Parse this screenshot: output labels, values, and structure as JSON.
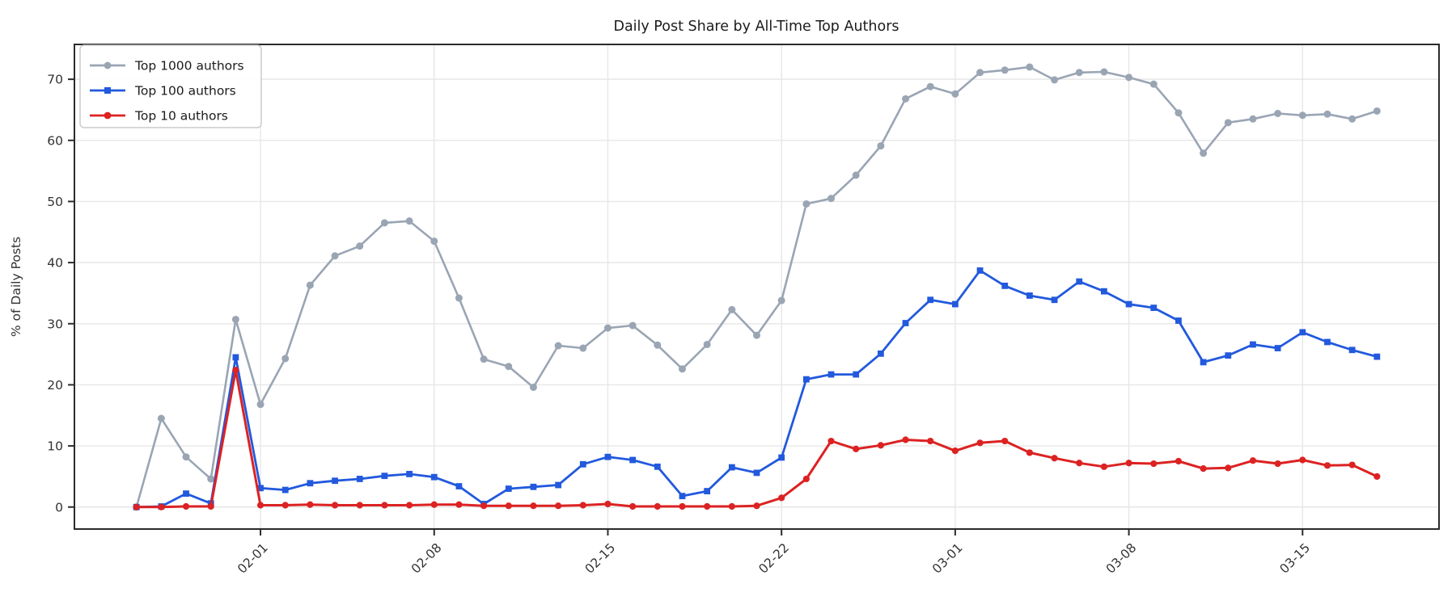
{
  "title": "Daily Post Share by All-Time Top Authors",
  "ylabel": "% of Daily Posts",
  "colors": {
    "top1000": "#9aa5b4",
    "top100": "#2259dd",
    "top10": "#dc2222",
    "grid": "#e7e7e7",
    "spine": "#2b2b2b",
    "tick_text": "#333333",
    "title_text": "#1c1c1c",
    "legend_border": "#cccccc",
    "background": "#ffffff"
  },
  "legend": {
    "position": "upper-left",
    "entries": [
      "Top 1000 authors",
      "Top 100 authors",
      "Top 10 authors"
    ]
  },
  "chart_data": {
    "type": "line",
    "x": [
      "01-27",
      "01-28",
      "01-29",
      "01-30",
      "01-31",
      "02-01",
      "02-02",
      "02-03",
      "02-04",
      "02-05",
      "02-06",
      "02-07",
      "02-08",
      "02-09",
      "02-10",
      "02-11",
      "02-12",
      "02-13",
      "02-14",
      "02-15",
      "02-16",
      "02-17",
      "02-18",
      "02-19",
      "02-20",
      "02-21",
      "02-22",
      "02-23",
      "02-24",
      "02-25",
      "02-26",
      "02-27",
      "02-28",
      "03-01",
      "03-02",
      "03-03",
      "03-04",
      "03-05",
      "03-06",
      "03-07",
      "03-08",
      "03-09",
      "03-10",
      "03-11",
      "03-12",
      "03-13",
      "03-14",
      "03-15",
      "03-16",
      "03-17",
      "03-18"
    ],
    "x_tick_labels": [
      "02-01",
      "02-08",
      "02-15",
      "02-22",
      "03-01",
      "03-08",
      "03-15"
    ],
    "y_ticks": [
      0,
      10,
      20,
      30,
      40,
      50,
      60,
      70
    ],
    "ylim": [
      -3.6,
      75.7
    ],
    "grid": true,
    "xlabel": "",
    "series": [
      {
        "name": "Top 1000 authors",
        "color": "#9aa5b4",
        "marker": "circle",
        "values": [
          0,
          14.5,
          8.2,
          4.6,
          30.7,
          16.8,
          24.3,
          36.3,
          41.1,
          42.7,
          46.5,
          46.8,
          43.5,
          34.2,
          24.2,
          23.0,
          19.6,
          26.4,
          26.0,
          29.3,
          29.7,
          26.5,
          22.6,
          26.6,
          32.3,
          28.1,
          33.8,
          49.6,
          50.5,
          54.3,
          59.1,
          66.8,
          68.8,
          67.6,
          71.1,
          71.5,
          72.0,
          69.9,
          71.1,
          71.2,
          70.3,
          69.2,
          64.5,
          57.9,
          62.9,
          63.5,
          64.4,
          64.1,
          64.3,
          63.5,
          64.8
        ]
      },
      {
        "name": "Top 100 authors",
        "color": "#2259dd",
        "marker": "square",
        "values": [
          0,
          0.1,
          2.2,
          0.6,
          24.5,
          3.1,
          2.8,
          3.9,
          4.3,
          4.6,
          5.1,
          5.4,
          4.9,
          3.4,
          0.5,
          3.0,
          3.3,
          3.6,
          7.0,
          8.2,
          7.7,
          6.6,
          1.8,
          2.6,
          6.5,
          5.6,
          8.1,
          20.9,
          21.7,
          21.7,
          25.1,
          30.1,
          33.9,
          33.2,
          38.7,
          36.2,
          34.6,
          33.9,
          36.9,
          35.3,
          33.2,
          32.6,
          30.5,
          23.7,
          24.8,
          26.6,
          26.0,
          28.6,
          27.0,
          25.7,
          24.6
        ]
      },
      {
        "name": "Top 10 authors",
        "color": "#dc2222",
        "marker": "circle",
        "values": [
          0,
          0,
          0.1,
          0.1,
          22.4,
          0.3,
          0.3,
          0.4,
          0.3,
          0.3,
          0.3,
          0.3,
          0.4,
          0.4,
          0.2,
          0.2,
          0.2,
          0.2,
          0.3,
          0.5,
          0.1,
          0.1,
          0.1,
          0.1,
          0.1,
          0.2,
          1.5,
          4.6,
          10.8,
          9.5,
          10.1,
          11.0,
          10.8,
          9.2,
          10.5,
          10.8,
          8.9,
          8.0,
          7.2,
          6.6,
          7.2,
          7.1,
          7.5,
          6.3,
          6.4,
          7.6,
          7.1,
          7.7,
          6.8,
          6.9,
          5.0
        ]
      }
    ]
  }
}
